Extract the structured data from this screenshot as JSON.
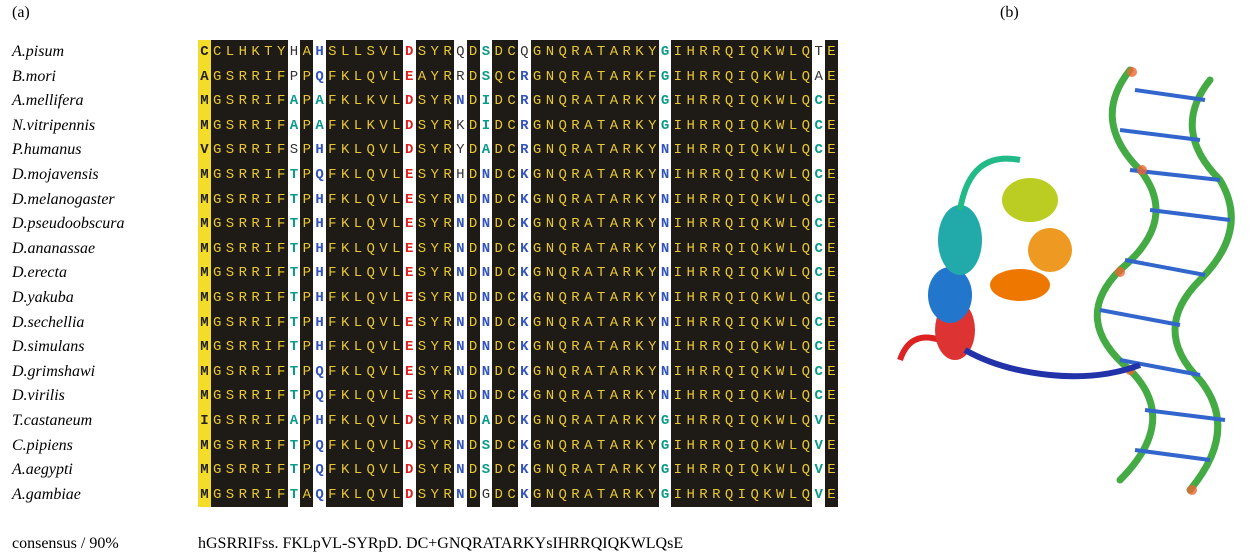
{
  "panel_a_label": "(a)",
  "panel_b_label": "(b)",
  "alignment": {
    "rows": [
      {
        "species": "A.pisum",
        "sequence": "CCLHKTYHAHSLLSVLDSYRQDSDCQGNQRATARKYGIHRRQIQKWLQTE"
      },
      {
        "species": "B.mori",
        "sequence": "AGSRRIFPPQFKLQVLEAYRRDSQCRGNQRATARKFGIHRRQIQKWLQAE"
      },
      {
        "species": "A.mellifera",
        "sequence": "MGSRRIFAPAFKLKVLDSYRNDIDCRGNQRATARKYGIHRRQIQKWLQCE"
      },
      {
        "species": "N.vitripennis",
        "sequence": "MGSRRIFAPAFKLKVLDSYRKDIDCRGNQRATARKYGIHRRQIQKWLQCE"
      },
      {
        "species": "P.humanus",
        "sequence": "VGSRRIFSPHFKLQVLDSYRYDADCRGNQRATARKYNIHRRQIQKWLQCE"
      },
      {
        "species": "D.mojavensis",
        "sequence": "MGSRRIFTPQFKLQVLESYRHDNDCKGNQRATARKYNIHRRQIQKWLQCE"
      },
      {
        "species": "D.melanogaster",
        "sequence": "MGSRRIFTPHFKLQVLESYRNDNDCKGNQRATARKYNIHRRQIQKWLQCE"
      },
      {
        "species": "D.pseudoobscura",
        "sequence": "MGSRRIFTPHFKLQVLESYRNDNDCKGNQRATARKYNIHRRQIQKWLQCE"
      },
      {
        "species": "D.ananassae",
        "sequence": "MGSRRIFTPHFKLQVLESYRNDNDCKGNQRATARKYNIHRRQIQKWLQCE"
      },
      {
        "species": "D.erecta",
        "sequence": "MGSRRIFTPHFKLQVLESYRNDNDCKGNQRATARKYNIHRRQIQKWLQCE"
      },
      {
        "species": "D.yakuba",
        "sequence": "MGSRRIFTPHFKLQVLESYRNDNDCKGNQRATARKYNIHRRQIQKWLQCE"
      },
      {
        "species": "D.sechellia",
        "sequence": "MGSRRIFTPHFKLQVLESYRNDNDCKGNQRATARKYNIHRRQIQKWLQCE"
      },
      {
        "species": "D.simulans",
        "sequence": "MGSRRIFTPHFKLQVLESYRNDNDCKGNQRATARKYNIHRRQIQKWLQCE"
      },
      {
        "species": "D.grimshawi",
        "sequence": "MGSRRIFTPQFKLQVLESYRNDNDCKGNQRATARKYNIHRRQIQKWLQCE"
      },
      {
        "species": "D.virilis",
        "sequence": "MGSRRIFTPQFKLQVLESYRNDNDCKGNQRATARKYNIHRRQIQKWLQCE"
      },
      {
        "species": "T.castaneum",
        "sequence": "IGSRRIFAPHFKLQVLDSYRNDADCKGNQRATARKYGIHRRQIQKWLQVE"
      },
      {
        "species": "C.pipiens",
        "sequence": "MGSRRIFTPQFKLQVLDSYRNDSDCKGNQRATARKYGIHRRQIQKWLQVE"
      },
      {
        "species": "A.aegypti",
        "sequence": "MGSRRIFTPQFKLQVLDSYRNDSDCKGNQRATARKYGIHRRQIQKWLQVE"
      },
      {
        "species": "A.gambiae",
        "sequence": "MGSRRIFTAQFKLQVLDSYRNDGDCKGNQRATARKYGIHRRQIQKWLQVE"
      }
    ],
    "consensus_label": "consensus / 90%",
    "consensus": "hGSRRIFss. FKLpVL-SYRpD. DC+GNQRATARKYsIHRRQIQKWLQsE"
  }
}
